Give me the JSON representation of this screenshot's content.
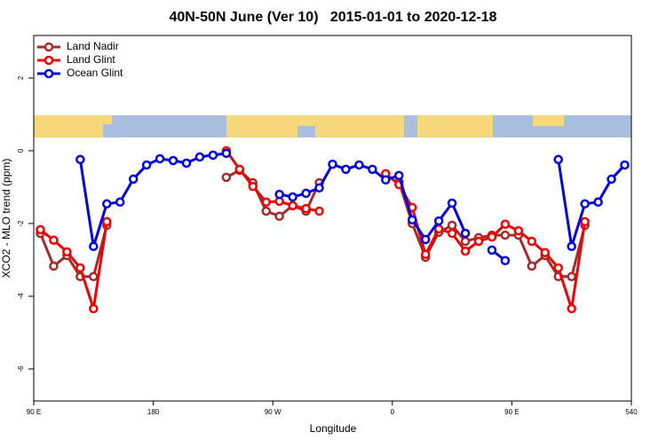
{
  "chart_data": {
    "type": "line",
    "title": "40N-50N June (Ver 10)   2015-01-01 to 2020-12-18",
    "xlabel": "Longitude",
    "ylabel": "XCO2 - MLO trend (ppm)",
    "x": [
      95,
      105,
      115,
      125,
      135,
      145,
      155,
      165,
      175,
      185,
      195,
      205,
      215,
      225,
      235,
      245,
      255,
      265,
      275,
      285,
      295,
      305,
      315,
      325,
      335,
      345,
      355,
      365,
      375,
      385,
      395,
      405,
      415,
      425,
      435,
      445,
      455,
      465,
      475,
      485,
      495,
      505,
      515,
      525,
      535
    ],
    "xlim": [
      90,
      540
    ],
    "xticks": [
      {
        "value": 90,
        "label": "90 E"
      },
      180,
      {
        "value": 270,
        "label": "90 W"
      },
      {
        "value": 360,
        "label": "0"
      },
      {
        "value": 450,
        "label": "90 E"
      },
      540
    ],
    "ylim": [
      -6.88,
      3.17
    ],
    "yticks": [
      -6,
      -4,
      -2,
      0,
      2
    ],
    "legend": "top-left",
    "series": [
      {
        "name": "Land Nadir",
        "color": "#a52a2a",
        "values": [
          -2.27,
          -3.17,
          -2.88,
          -3.46,
          -3.46,
          -2.05,
          null,
          null,
          null,
          null,
          null,
          null,
          null,
          null,
          -0.73,
          -0.54,
          -0.88,
          -1.66,
          -1.8,
          -1.51,
          -1.66,
          -0.88,
          null,
          null,
          null,
          null,
          null,
          -0.85,
          -2.0,
          -2.93,
          -2.24,
          -2.05,
          -2.49,
          -2.39,
          -2.32,
          -2.32,
          -2.32,
          -3.17,
          -2.88,
          -3.46,
          -3.46,
          -2.05,
          null,
          null,
          null
        ]
      },
      {
        "name": "Land Glint",
        "color": "#ee0000",
        "values": [
          -2.17,
          -2.46,
          -2.78,
          -3.22,
          -4.34,
          -1.95,
          null,
          null,
          null,
          null,
          null,
          null,
          null,
          null,
          0.0,
          -0.51,
          -0.98,
          -1.41,
          -1.39,
          -1.51,
          -1.59,
          -1.66,
          null,
          null,
          null,
          null,
          -0.63,
          -0.93,
          -1.56,
          -2.85,
          -2.15,
          -2.27,
          -2.76,
          -2.49,
          -2.37,
          -2.02,
          -2.2,
          -2.49,
          -2.8,
          -3.22,
          -4.34,
          -1.95,
          null,
          null,
          null
        ]
      },
      {
        "name": "Ocean Glint",
        "color": "#0000dd",
        "values": [
          null,
          null,
          null,
          -0.24,
          -2.63,
          -1.46,
          -1.41,
          -0.78,
          -0.39,
          -0.22,
          -0.27,
          -0.34,
          -0.17,
          -0.12,
          -0.07,
          null,
          null,
          null,
          -1.2,
          -1.27,
          -1.17,
          -1.02,
          -0.37,
          -0.51,
          -0.39,
          -0.51,
          -0.8,
          -0.68,
          -1.9,
          -2.44,
          -1.93,
          -1.44,
          -2.27,
          null,
          -2.73,
          -3.02,
          null,
          null,
          null,
          -0.24,
          -2.63,
          -1.46,
          -1.41,
          -0.78,
          -0.39
        ]
      }
    ]
  }
}
